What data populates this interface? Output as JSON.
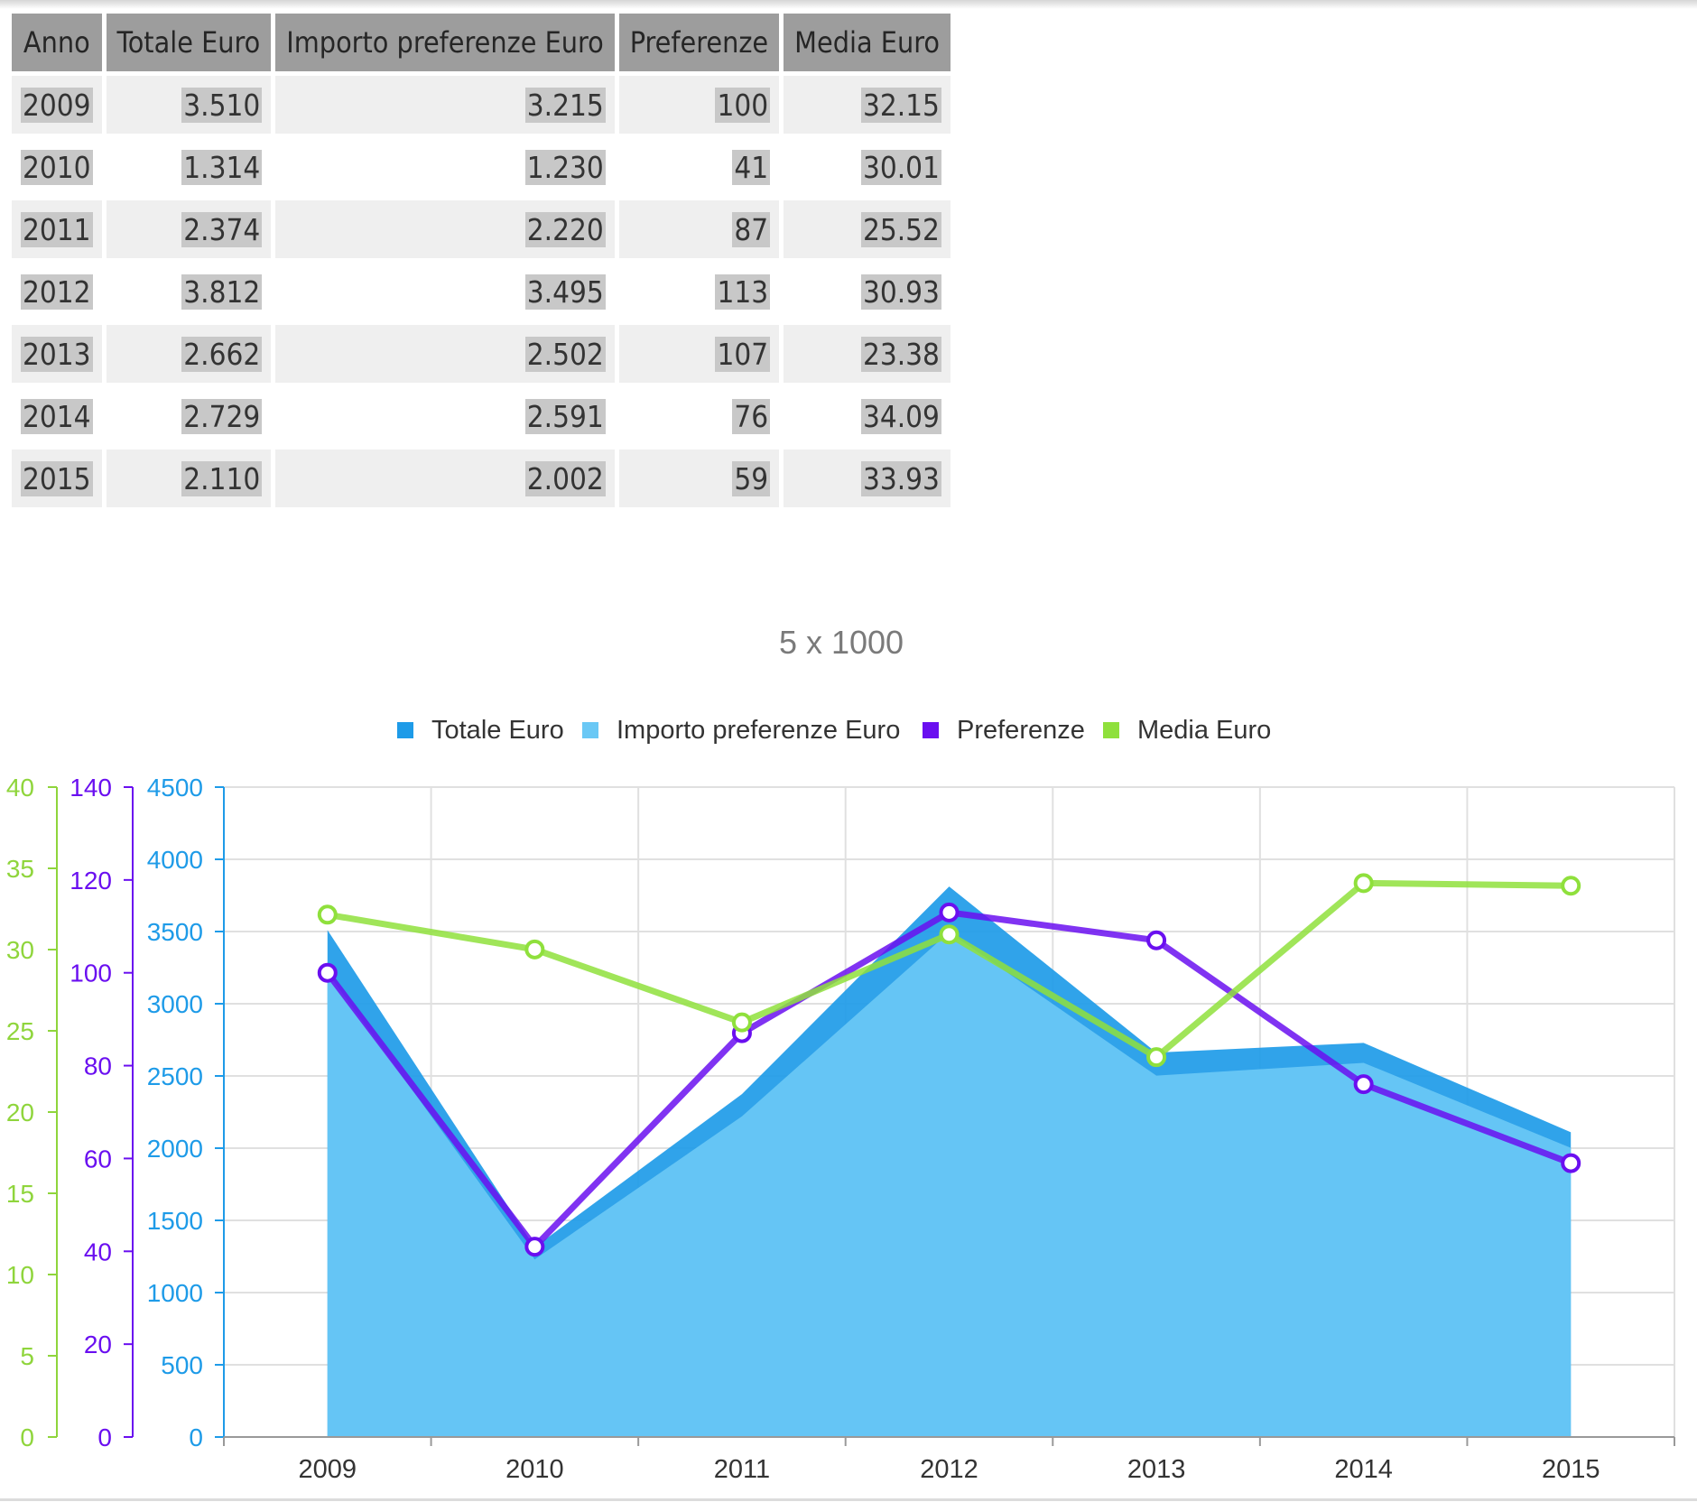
{
  "table": {
    "headers": [
      "Anno",
      "Totale Euro",
      "Importo preferenze Euro",
      "Preferenze",
      "Media Euro"
    ],
    "rows": [
      [
        "2009",
        "3.510",
        "3.215",
        "100",
        "32.15"
      ],
      [
        "2010",
        "1.314",
        "1.230",
        "41",
        "30.01"
      ],
      [
        "2011",
        "2.374",
        "2.220",
        "87",
        "25.52"
      ],
      [
        "2012",
        "3.812",
        "3.495",
        "113",
        "30.93"
      ],
      [
        "2013",
        "2.662",
        "2.502",
        "107",
        "23.38"
      ],
      [
        "2014",
        "2.729",
        "2.591",
        "76",
        "34.09"
      ],
      [
        "2015",
        "2.110",
        "2.002",
        "59",
        "33.93"
      ]
    ]
  },
  "chart_data": {
    "type": "area",
    "title": "5 x 1000",
    "categories": [
      "2009",
      "2010",
      "2011",
      "2012",
      "2013",
      "2014",
      "2015"
    ],
    "legend_position": "top-center",
    "grid": true,
    "series": [
      {
        "name": "Totale Euro",
        "kind": "area",
        "axis": "euro",
        "color": "#1e9be8",
        "values": [
          3510,
          1314,
          2374,
          3812,
          2662,
          2729,
          2110
        ]
      },
      {
        "name": "Importo preferenze Euro",
        "kind": "area",
        "axis": "euro",
        "color": "#6ac8f5",
        "values": [
          3215,
          1230,
          2220,
          3495,
          2502,
          2591,
          2002
        ]
      },
      {
        "name": "Preferenze",
        "kind": "line",
        "axis": "preferenze",
        "color": "#6a0ff0",
        "values": [
          100,
          41,
          87,
          113,
          107,
          76,
          59
        ]
      },
      {
        "name": "Media Euro",
        "kind": "line",
        "axis": "media",
        "color": "#8fe03c",
        "values": [
          32.15,
          30.01,
          25.52,
          30.93,
          23.38,
          34.09,
          33.93
        ]
      }
    ],
    "axes": [
      {
        "id": "media",
        "range": [
          0,
          40
        ],
        "ticks": [
          "0",
          "5",
          "10",
          "15",
          "20",
          "25",
          "30",
          "35",
          "40"
        ],
        "color": "#8fd53c"
      },
      {
        "id": "preferenze",
        "range": [
          0,
          140
        ],
        "ticks": [
          "0",
          "20",
          "40",
          "60",
          "80",
          "100",
          "120",
          "140"
        ],
        "color": "#6a0ff0"
      },
      {
        "id": "euro",
        "range": [
          0,
          4500
        ],
        "ticks": [
          "0",
          "500",
          "1000",
          "1500",
          "2000",
          "2500",
          "3000",
          "3500",
          "4000",
          "4500"
        ],
        "color": "#1e9be8"
      }
    ]
  }
}
